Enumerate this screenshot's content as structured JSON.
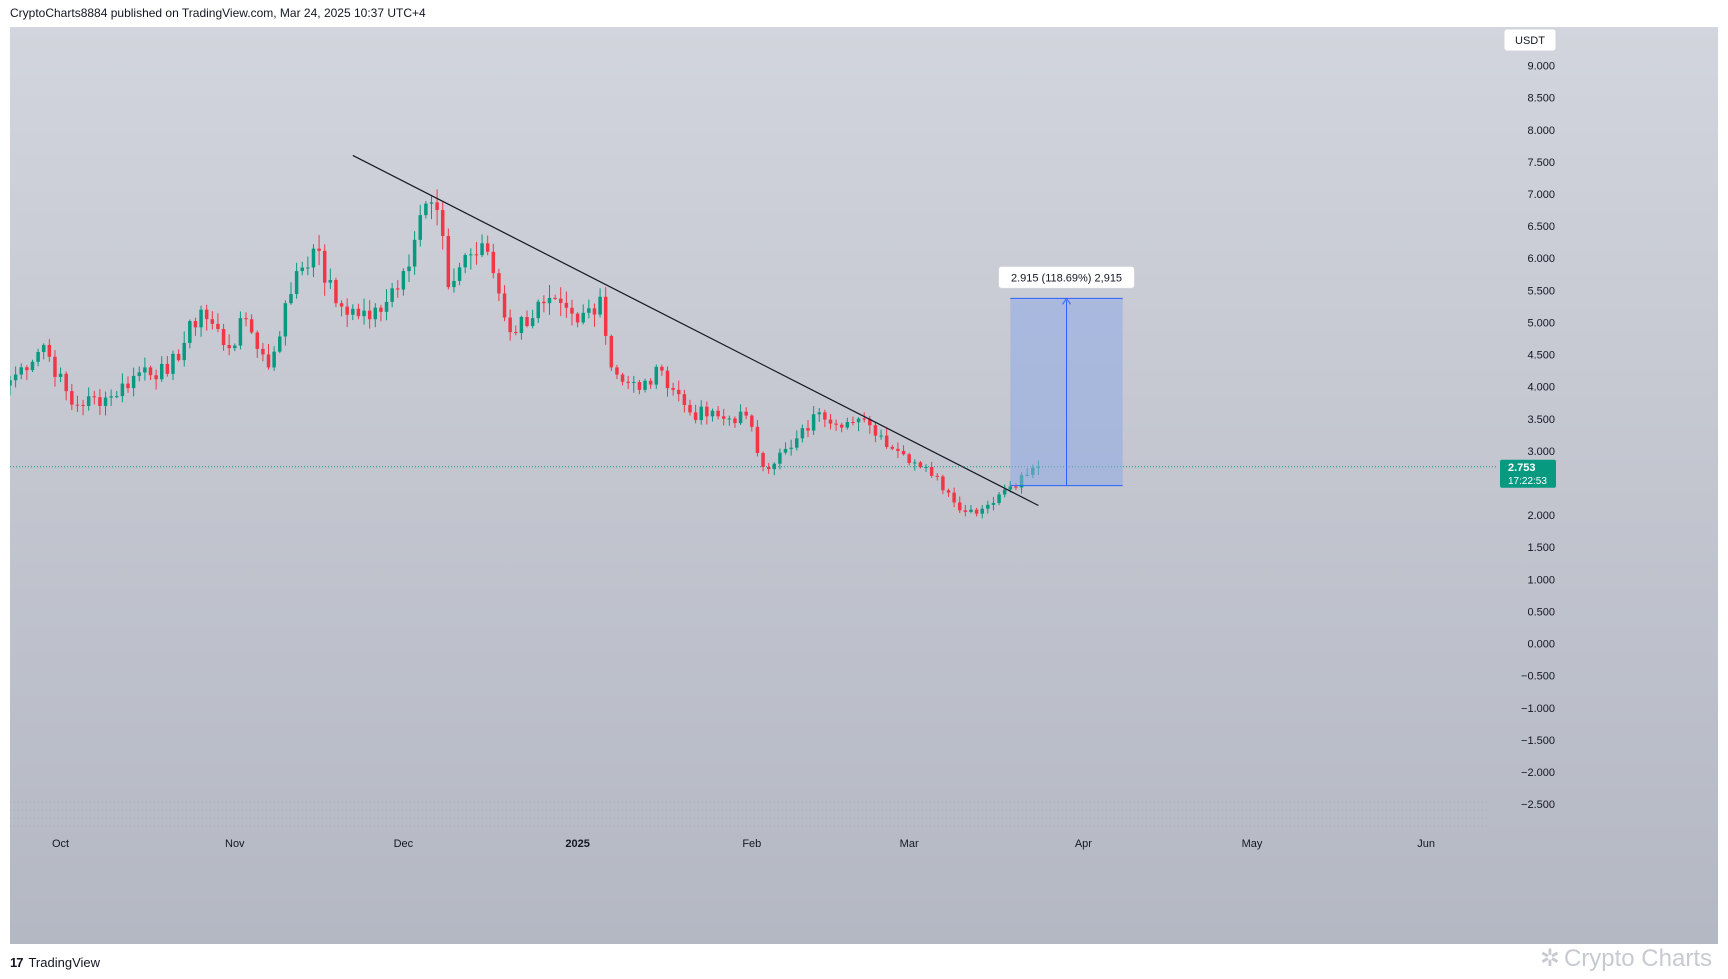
{
  "header": {
    "publish_line": "CryptoCharts8884 published on TradingView.com, Mar 24, 2025 10:37 UTC+4"
  },
  "footer": {
    "brand": "TradingView",
    "watermark": "Crypto Charts"
  },
  "colors": {
    "up": "#089981",
    "down": "#f23645",
    "price_line": "#089981",
    "target_fill": "#8fa9e6",
    "target_line": "#2962ff",
    "trendline": "#131722"
  },
  "chart_data": {
    "type": "candlestick",
    "currency": "USDT",
    "y_ticks": [
      "9.000",
      "8.500",
      "8.000",
      "7.500",
      "7.000",
      "6.500",
      "6.000",
      "5.500",
      "5.000",
      "4.500",
      "4.000",
      "3.500",
      "3.000",
      "2.500",
      "2.000",
      "1.500",
      "1.000",
      "0.500",
      "0.000",
      "−0.500",
      "−1.000",
      "−1.500",
      "−2.000",
      "−2.500"
    ],
    "ylim": [
      -2.7,
      9.6
    ],
    "x_ticks": [
      {
        "label": "Oct",
        "date": "2024-10-01",
        "bold": false
      },
      {
        "label": "Nov",
        "date": "2024-11-01",
        "bold": false
      },
      {
        "label": "Dec",
        "date": "2024-12-01",
        "bold": false
      },
      {
        "label": "2025",
        "date": "2025-01-01",
        "bold": true
      },
      {
        "label": "Feb",
        "date": "2025-02-01",
        "bold": false
      },
      {
        "label": "Mar",
        "date": "2025-03-01",
        "bold": false
      },
      {
        "label": "Apr",
        "date": "2025-04-01",
        "bold": false
      },
      {
        "label": "May",
        "date": "2025-05-01",
        "bold": false
      },
      {
        "label": "Jun",
        "date": "2025-06-01",
        "bold": false
      }
    ],
    "x_range": [
      "2024-09-22",
      "2025-06-12"
    ],
    "last_price": {
      "value": 2.753,
      "label": "2.753",
      "countdown": "17:22:53"
    },
    "trendline": {
      "start": {
        "date": "2024-11-22",
        "value": 7.6
      },
      "end": {
        "date": "2025-03-24",
        "value": 2.15
      }
    },
    "target_measure": {
      "label": "2.915 (118.69%) 2,915",
      "date_start": "2025-03-19",
      "date_end": "2025-04-08",
      "base": 2.46,
      "top": 5.375
    },
    "anchors": [
      {
        "date": "2024-09-22",
        "value": 4.1
      },
      {
        "date": "2024-09-28",
        "value": 4.65
      },
      {
        "date": "2024-10-03",
        "value": 3.72
      },
      {
        "date": "2024-10-10",
        "value": 3.85
      },
      {
        "date": "2024-10-16",
        "value": 4.3
      },
      {
        "date": "2024-10-20",
        "value": 4.2
      },
      {
        "date": "2024-10-26",
        "value": 5.2
      },
      {
        "date": "2024-10-31",
        "value": 4.6
      },
      {
        "date": "2024-11-03",
        "value": 5.05
      },
      {
        "date": "2024-11-07",
        "value": 4.3
      },
      {
        "date": "2024-11-12",
        "value": 5.8
      },
      {
        "date": "2024-11-15",
        "value": 6.15
      },
      {
        "date": "2024-11-19",
        "value": 5.3
      },
      {
        "date": "2024-11-25",
        "value": 5.05
      },
      {
        "date": "2024-12-01",
        "value": 5.8
      },
      {
        "date": "2024-12-05",
        "value": 6.85
      },
      {
        "date": "2024-12-07",
        "value": 6.75
      },
      {
        "date": "2024-12-09",
        "value": 5.55
      },
      {
        "date": "2024-12-12",
        "value": 6.05
      },
      {
        "date": "2024-12-16",
        "value": 6.1
      },
      {
        "date": "2024-12-20",
        "value": 4.85
      },
      {
        "date": "2024-12-26",
        "value": 5.3
      },
      {
        "date": "2025-01-01",
        "value": 5.0
      },
      {
        "date": "2025-01-05",
        "value": 5.4
      },
      {
        "date": "2025-01-07",
        "value": 4.3
      },
      {
        "date": "2025-01-12",
        "value": 3.95
      },
      {
        "date": "2025-01-16",
        "value": 4.25
      },
      {
        "date": "2025-01-21",
        "value": 3.6
      },
      {
        "date": "2025-01-27",
        "value": 3.5
      },
      {
        "date": "2025-01-31",
        "value": 3.55
      },
      {
        "date": "2025-02-03",
        "value": 2.75
      },
      {
        "date": "2025-02-08",
        "value": 3.05
      },
      {
        "date": "2025-02-13",
        "value": 3.6
      },
      {
        "date": "2025-02-18",
        "value": 3.45
      },
      {
        "date": "2025-02-22",
        "value": 3.4
      },
      {
        "date": "2025-02-27",
        "value": 3.0
      },
      {
        "date": "2025-03-04",
        "value": 2.75
      },
      {
        "date": "2025-03-08",
        "value": 2.35
      },
      {
        "date": "2025-03-11",
        "value": 2.05
      },
      {
        "date": "2025-03-14",
        "value": 2.1
      },
      {
        "date": "2025-03-18",
        "value": 2.4
      },
      {
        "date": "2025-03-24",
        "value": 2.753
      }
    ]
  }
}
